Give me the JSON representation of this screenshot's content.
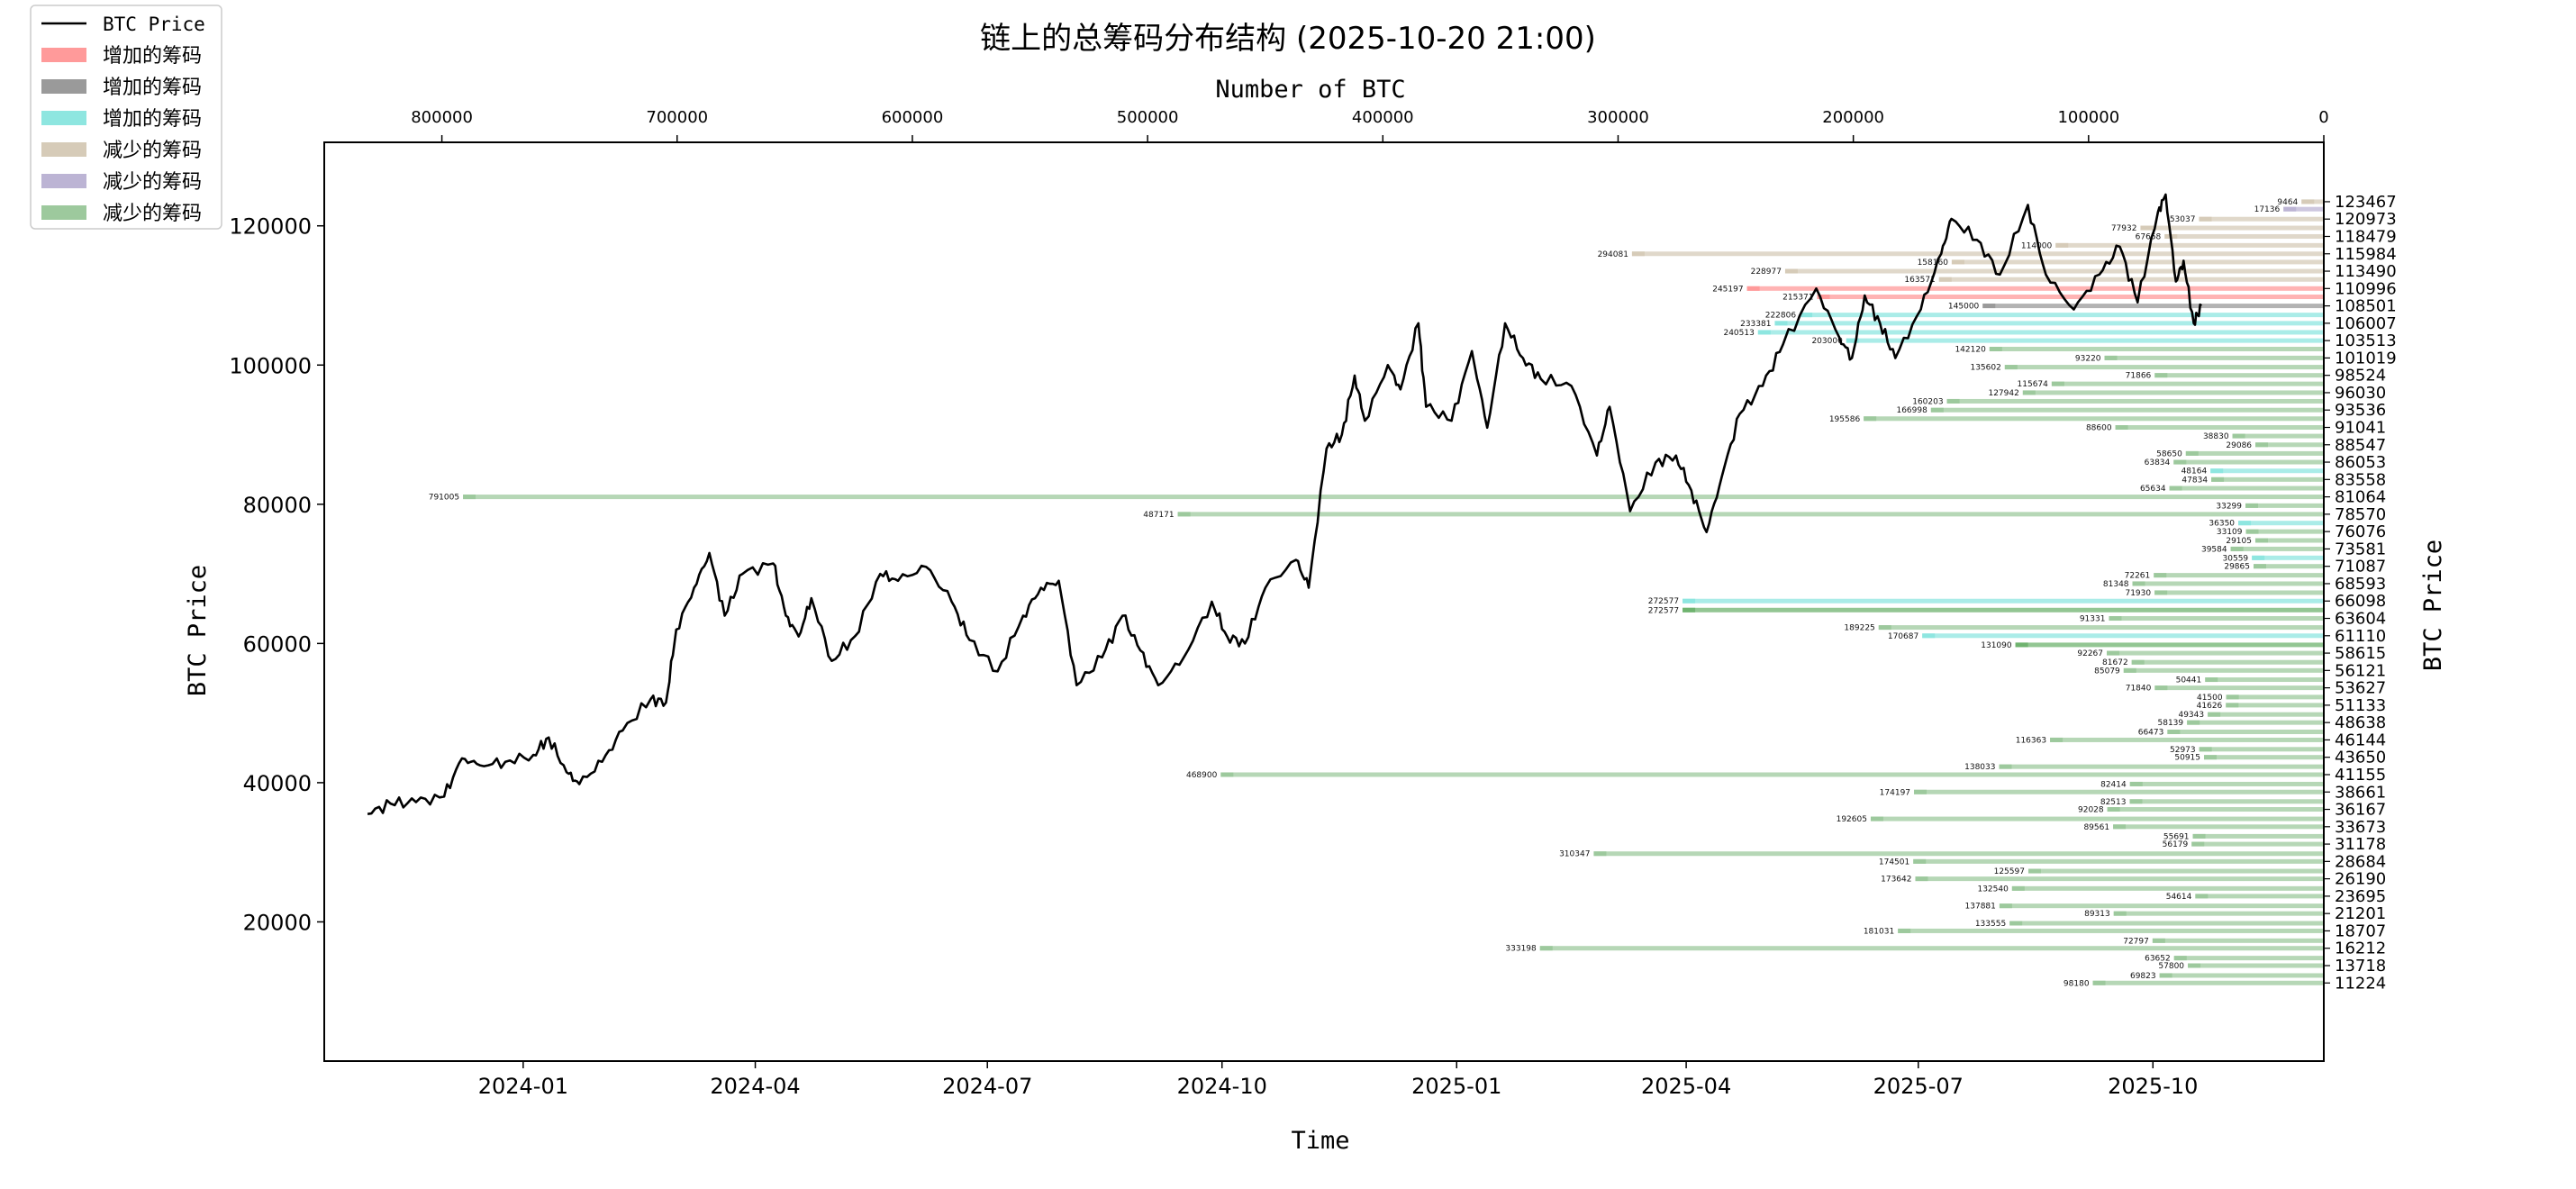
{
  "chart_data": {
    "type": "line",
    "title": "链上的总筹码分布结构 (2025-10-20 21:00)",
    "xlabel": "Time",
    "ylabel": "BTC Price",
    "ylabel_right": "BTC Price",
    "xlabel_top": "Number of BTC",
    "ylim": [
      0,
      132000
    ],
    "xlim": [
      "2023-10-15",
      "2025-12-07"
    ],
    "x_ticks": [
      "2024-01",
      "2024-04",
      "2024-07",
      "2024-10",
      "2025-01",
      "2025-04",
      "2025-07",
      "2025-10"
    ],
    "y_ticks": [
      "20000",
      "40000",
      "60000",
      "80000",
      "100000",
      "120000"
    ],
    "top_axis": {
      "xlim": [
        0,
        850000
      ],
      "ticks": [
        "800000",
        "700000",
        "600000",
        "500000",
        "400000",
        "300000",
        "200000",
        "100000",
        "0"
      ]
    },
    "right_ticks": [
      "123467",
      "120973",
      "118479",
      "115984",
      "113490",
      "110996",
      "108501",
      "106007",
      "103513",
      "101019",
      "98524",
      "96030",
      "93536",
      "91041",
      "88547",
      "86053",
      "83558",
      "81064",
      "78570",
      "76076",
      "73581",
      "71087",
      "68593",
      "66098",
      "63604",
      "61110",
      "58615",
      "56121",
      "53627",
      "51133",
      "48638",
      "46144",
      "43650",
      "41155",
      "38661",
      "36167",
      "33673",
      "31178",
      "28684",
      "26190",
      "23695",
      "21201",
      "18707",
      "16212",
      "13718",
      "11224"
    ],
    "legend": [
      {
        "label": "BTC Price",
        "color": "#000000",
        "kind": "line"
      },
      {
        "label": "增加的筹码",
        "color": "#ff9a9a",
        "kind": "patch"
      },
      {
        "label": "增加的筹码",
        "color": "#9a9a9a",
        "kind": "patch"
      },
      {
        "label": "增加的筹码",
        "color": "#8ee6e0",
        "kind": "patch"
      },
      {
        "label": "减少的筹码",
        "color": "#d6cbb8",
        "kind": "patch"
      },
      {
        "label": "减少的筹码",
        "color": "#bcb4d4",
        "kind": "patch"
      },
      {
        "label": "减少的筹码",
        "color": "#9dc99d",
        "kind": "patch"
      }
    ],
    "legend_position": "top-left",
    "price_series": {
      "name": "BTC Price",
      "color": "#000000",
      "points": [
        [
          "2023-11-01",
          35500
        ],
        [
          "2023-11-10",
          37000
        ],
        [
          "2023-11-20",
          37200
        ],
        [
          "2023-12-01",
          38000
        ],
        [
          "2023-12-08",
          43500
        ],
        [
          "2023-12-15",
          42500
        ],
        [
          "2023-12-25",
          43000
        ],
        [
          "2024-01-05",
          44000
        ],
        [
          "2024-01-11",
          46500
        ],
        [
          "2024-01-18",
          41500
        ],
        [
          "2024-01-23",
          39800
        ],
        [
          "2024-02-01",
          43000
        ],
        [
          "2024-02-09",
          47500
        ],
        [
          "2024-02-20",
          52000
        ],
        [
          "2024-02-26",
          51500
        ],
        [
          "2024-03-01",
          62000
        ],
        [
          "2024-03-08",
          68000
        ],
        [
          "2024-03-14",
          73000
        ],
        [
          "2024-03-20",
          64000
        ],
        [
          "2024-03-27",
          70000
        ],
        [
          "2024-04-08",
          71500
        ],
        [
          "2024-04-13",
          64000
        ],
        [
          "2024-04-18",
          61000
        ],
        [
          "2024-04-23",
          66500
        ],
        [
          "2024-05-01",
          57500
        ],
        [
          "2024-05-10",
          61000
        ],
        [
          "2024-05-20",
          70000
        ],
        [
          "2024-05-27",
          69000
        ],
        [
          "2024-06-07",
          71000
        ],
        [
          "2024-06-17",
          66000
        ],
        [
          "2024-06-24",
          60500
        ],
        [
          "2024-07-05",
          56000
        ],
        [
          "2024-07-15",
          64000
        ],
        [
          "2024-07-22",
          68000
        ],
        [
          "2024-07-29",
          69000
        ],
        [
          "2024-08-05",
          54000
        ],
        [
          "2024-08-15",
          58000
        ],
        [
          "2024-08-23",
          64000
        ],
        [
          "2024-08-30",
          59000
        ],
        [
          "2024-09-06",
          54000
        ],
        [
          "2024-09-16",
          58000
        ],
        [
          "2024-09-27",
          66000
        ],
        [
          "2024-10-03",
          61000
        ],
        [
          "2024-10-10",
          60000
        ],
        [
          "2024-10-18",
          68000
        ],
        [
          "2024-10-30",
          72000
        ],
        [
          "2024-11-04",
          68000
        ],
        [
          "2024-11-11",
          88000
        ],
        [
          "2024-11-17",
          90000
        ],
        [
          "2024-11-22",
          98500
        ],
        [
          "2024-11-26",
          92000
        ],
        [
          "2024-12-05",
          100000
        ],
        [
          "2024-12-10",
          96500
        ],
        [
          "2024-12-17",
          106000
        ],
        [
          "2024-12-20",
          94000
        ],
        [
          "2024-12-30",
          92000
        ],
        [
          "2025-01-07",
          102000
        ],
        [
          "2025-01-13",
          91000
        ],
        [
          "2025-01-20",
          106000
        ],
        [
          "2025-01-27",
          101000
        ],
        [
          "2025-02-03",
          98000
        ],
        [
          "2025-02-15",
          97000
        ],
        [
          "2025-02-25",
          87000
        ],
        [
          "2025-03-02",
          94000
        ],
        [
          "2025-03-10",
          79000
        ],
        [
          "2025-03-20",
          86000
        ],
        [
          "2025-03-28",
          87000
        ],
        [
          "2025-04-03",
          82000
        ],
        [
          "2025-04-09",
          76000
        ],
        [
          "2025-04-15",
          84000
        ],
        [
          "2025-04-22",
          93000
        ],
        [
          "2025-05-01",
          97000
        ],
        [
          "2025-05-09",
          103000
        ],
        [
          "2025-05-22",
          111000
        ],
        [
          "2025-05-31",
          104000
        ],
        [
          "2025-06-05",
          101000
        ],
        [
          "2025-06-10",
          110000
        ],
        [
          "2025-06-16",
          106000
        ],
        [
          "2025-06-22",
          101000
        ],
        [
          "2025-07-02",
          108000
        ],
        [
          "2025-07-10",
          116000
        ],
        [
          "2025-07-14",
          121000
        ],
        [
          "2025-07-24",
          118000
        ],
        [
          "2025-08-02",
          113000
        ],
        [
          "2025-08-13",
          123000
        ],
        [
          "2025-08-20",
          113000
        ],
        [
          "2025-08-31",
          108000
        ],
        [
          "2025-09-10",
          113000
        ],
        [
          "2025-09-18",
          117000
        ],
        [
          "2025-09-25",
          109000
        ],
        [
          "2025-10-03",
          122000
        ],
        [
          "2025-10-06",
          124500
        ],
        [
          "2025-10-10",
          112000
        ],
        [
          "2025-10-13",
          115000
        ],
        [
          "2025-10-17",
          106000
        ],
        [
          "2025-10-20",
          108500
        ]
      ]
    },
    "bars": [
      {
        "price": 123467,
        "btc": 9464,
        "color": "#d6cbb8"
      },
      {
        "price": 122400,
        "btc": 17136,
        "color": "#bcb4d4"
      },
      {
        "price": 120973,
        "btc": 53037,
        "color": "#d6cbb8"
      },
      {
        "price": 119700,
        "btc": 77932,
        "color": "#d6cbb8"
      },
      {
        "price": 118479,
        "btc": 67658,
        "color": "#d6cbb8"
      },
      {
        "price": 117200,
        "btc": 114000,
        "color": "#d6cbb8"
      },
      {
        "price": 115984,
        "btc": 294081,
        "color": "#d6cbb8"
      },
      {
        "price": 114800,
        "btc": 158160,
        "color": "#d6cbb8"
      },
      {
        "price": 113490,
        "btc": 228977,
        "color": "#d6cbb8"
      },
      {
        "price": 112300,
        "btc": 163571,
        "color": "#d6cbb8"
      },
      {
        "price": 110996,
        "btc": 245197,
        "color": "#ff9a9a"
      },
      {
        "price": 109800,
        "btc": 215371,
        "color": "#ff9a9a"
      },
      {
        "price": 108501,
        "btc": 145000,
        "color": "#9a9a9a"
      },
      {
        "price": 107200,
        "btc": 222806,
        "color": "#8ee6e0"
      },
      {
        "price": 106007,
        "btc": 233381,
        "color": "#8ee6e0"
      },
      {
        "price": 104700,
        "btc": 240513,
        "color": "#8ee6e0"
      },
      {
        "price": 103513,
        "btc": 203000,
        "color": "#8ee6e0"
      },
      {
        "price": 102300,
        "btc": 142120,
        "color": "#9dc99d"
      },
      {
        "price": 101019,
        "btc": 93220,
        "color": "#9dc99d"
      },
      {
        "price": 99700,
        "btc": 135602,
        "color": "#9dc99d"
      },
      {
        "price": 98524,
        "btc": 71866,
        "color": "#9dc99d"
      },
      {
        "price": 97300,
        "btc": 115674,
        "color": "#9dc99d"
      },
      {
        "price": 96030,
        "btc": 127942,
        "color": "#9dc99d"
      },
      {
        "price": 94800,
        "btc": 160203,
        "color": "#9dc99d"
      },
      {
        "price": 93536,
        "btc": 166998,
        "color": "#9dc99d"
      },
      {
        "price": 92300,
        "btc": 195586,
        "color": "#9dc99d"
      },
      {
        "price": 91041,
        "btc": 88600,
        "color": "#9dc99d"
      },
      {
        "price": 89800,
        "btc": 38830,
        "color": "#9dc99d"
      },
      {
        "price": 88547,
        "btc": 29086,
        "color": "#9dc99d"
      },
      {
        "price": 87300,
        "btc": 58650,
        "color": "#9dc99d"
      },
      {
        "price": 86053,
        "btc": 63834,
        "color": "#9dc99d"
      },
      {
        "price": 84800,
        "btc": 48164,
        "color": "#8ee6e0"
      },
      {
        "price": 83558,
        "btc": 47834,
        "color": "#9dc99d"
      },
      {
        "price": 82300,
        "btc": 65634,
        "color": "#9dc99d"
      },
      {
        "price": 81064,
        "btc": 791005,
        "color": "#9dc99d"
      },
      {
        "price": 79800,
        "btc": 33299,
        "color": "#9dc99d"
      },
      {
        "price": 78570,
        "btc": 487171,
        "color": "#9dc99d"
      },
      {
        "price": 77300,
        "btc": 36350,
        "color": "#8ee6e0"
      },
      {
        "price": 76076,
        "btc": 33109,
        "color": "#9dc99d"
      },
      {
        "price": 74800,
        "btc": 29105,
        "color": "#9dc99d"
      },
      {
        "price": 73581,
        "btc": 39584,
        "color": "#9dc99d"
      },
      {
        "price": 72300,
        "btc": 30559,
        "color": "#8ee6e0"
      },
      {
        "price": 71087,
        "btc": 29865,
        "color": "#9dc99d"
      },
      {
        "price": 69800,
        "btc": 72261,
        "color": "#9dc99d"
      },
      {
        "price": 68593,
        "btc": 81348,
        "color": "#9dc99d"
      },
      {
        "price": 67300,
        "btc": 71930,
        "color": "#9dc99d"
      },
      {
        "price": 66098,
        "btc": 272577,
        "color": "#8ee6e0"
      },
      {
        "price": 64800,
        "btc": 272577,
        "color": "#6fb36f"
      },
      {
        "price": 63604,
        "btc": 91331,
        "color": "#9dc99d"
      },
      {
        "price": 62300,
        "btc": 189225,
        "color": "#9dc99d"
      },
      {
        "price": 61110,
        "btc": 170687,
        "color": "#8ee6e0"
      },
      {
        "price": 59800,
        "btc": 131090,
        "color": "#6fb36f"
      },
      {
        "price": 58615,
        "btc": 92267,
        "color": "#9dc99d"
      },
      {
        "price": 57300,
        "btc": 81672,
        "color": "#9dc99d"
      },
      {
        "price": 56121,
        "btc": 85079,
        "color": "#9dc99d"
      },
      {
        "price": 54800,
        "btc": 50441,
        "color": "#9dc99d"
      },
      {
        "price": 53627,
        "btc": 71840,
        "color": "#9dc99d"
      },
      {
        "price": 52300,
        "btc": 41500,
        "color": "#9dc99d"
      },
      {
        "price": 51133,
        "btc": 41626,
        "color": "#9dc99d"
      },
      {
        "price": 49800,
        "btc": 49343,
        "color": "#9dc99d"
      },
      {
        "price": 48638,
        "btc": 58139,
        "color": "#9dc99d"
      },
      {
        "price": 47300,
        "btc": 66473,
        "color": "#9dc99d"
      },
      {
        "price": 46144,
        "btc": 116363,
        "color": "#9dc99d"
      },
      {
        "price": 44800,
        "btc": 52973,
        "color": "#9dc99d"
      },
      {
        "price": 43650,
        "btc": 50915,
        "color": "#9dc99d"
      },
      {
        "price": 42300,
        "btc": 138033,
        "color": "#9dc99d"
      },
      {
        "price": 41155,
        "btc": 468900,
        "color": "#9dc99d"
      },
      {
        "price": 39800,
        "btc": 82414,
        "color": "#9dc99d"
      },
      {
        "price": 38661,
        "btc": 174197,
        "color": "#9dc99d"
      },
      {
        "price": 37300,
        "btc": 82513,
        "color": "#9dc99d"
      },
      {
        "price": 36167,
        "btc": 92028,
        "color": "#9dc99d"
      },
      {
        "price": 34800,
        "btc": 192605,
        "color": "#9dc99d"
      },
      {
        "price": 33673,
        "btc": 89561,
        "color": "#9dc99d"
      },
      {
        "price": 32300,
        "btc": 55691,
        "color": "#9dc99d"
      },
      {
        "price": 31178,
        "btc": 56179,
        "color": "#9dc99d"
      },
      {
        "price": 29800,
        "btc": 310347,
        "color": "#9dc99d"
      },
      {
        "price": 28684,
        "btc": 174501,
        "color": "#9dc99d"
      },
      {
        "price": 27300,
        "btc": 125597,
        "color": "#9dc99d"
      },
      {
        "price": 26190,
        "btc": 173642,
        "color": "#9dc99d"
      },
      {
        "price": 24800,
        "btc": 132540,
        "color": "#9dc99d"
      },
      {
        "price": 23695,
        "btc": 54614,
        "color": "#9dc99d"
      },
      {
        "price": 22300,
        "btc": 137881,
        "color": "#9dc99d"
      },
      {
        "price": 21201,
        "btc": 89313,
        "color": "#9dc99d"
      },
      {
        "price": 19800,
        "btc": 133555,
        "color": "#9dc99d"
      },
      {
        "price": 18707,
        "btc": 181031,
        "color": "#9dc99d"
      },
      {
        "price": 17300,
        "btc": 72797,
        "color": "#9dc99d"
      },
      {
        "price": 16212,
        "btc": 333198,
        "color": "#9dc99d"
      },
      {
        "price": 14800,
        "btc": 63652,
        "color": "#9dc99d"
      },
      {
        "price": 13718,
        "btc": 57800,
        "color": "#9dc99d"
      },
      {
        "price": 12300,
        "btc": 69823,
        "color": "#9dc99d"
      },
      {
        "price": 11224,
        "btc": 98180,
        "color": "#9dc99d"
      }
    ]
  }
}
